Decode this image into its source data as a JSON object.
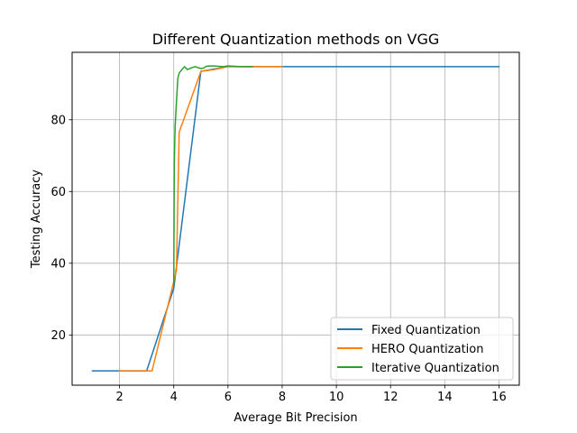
{
  "chart_data": {
    "type": "line",
    "title": "Different Quantization methods on VGG",
    "xlabel": "Average Bit Precision",
    "ylabel": "Testing Accuracy",
    "xlim": [
      0.25,
      16.75
    ],
    "ylim": [
      6.0,
      98.8
    ],
    "xticks": [
      2,
      4,
      6,
      8,
      10,
      12,
      14,
      16
    ],
    "yticks": [
      20,
      40,
      60,
      80
    ],
    "grid": true,
    "legend_position": "lower right",
    "series": [
      {
        "name": "Fixed Quantization",
        "color": "#1f77b4",
        "x": [
          1,
          2,
          3,
          4,
          5,
          6,
          7,
          8,
          9,
          10,
          11,
          12,
          13,
          14,
          15,
          16
        ],
        "y": [
          10.0,
          10.0,
          10.0,
          33.0,
          93.5,
          94.8,
          94.8,
          94.8,
          94.8,
          94.8,
          94.8,
          94.8,
          94.8,
          94.8,
          94.8,
          94.8
        ]
      },
      {
        "name": "HERO Quantization",
        "color": "#ff7f0e",
        "x": [
          2.0,
          3.2,
          4.1,
          4.2,
          5.0,
          5.5,
          6.0,
          7.0,
          8.0
        ],
        "y": [
          10.0,
          10.0,
          38.0,
          76.5,
          93.5,
          94.0,
          94.8,
          94.8,
          94.8
        ]
      },
      {
        "name": "Iterative Quantization",
        "color": "#2ca02c",
        "x": [
          4.0,
          4.02,
          4.05,
          4.1,
          4.15,
          4.2,
          4.3,
          4.4,
          4.5,
          4.6,
          4.7,
          4.8,
          4.9,
          5.0,
          5.1,
          5.2,
          5.3,
          5.5,
          5.8,
          6.0,
          6.5,
          6.9
        ],
        "y": [
          34.0,
          68.0,
          78.0,
          85.0,
          91.5,
          93.0,
          94.0,
          94.8,
          94.0,
          94.3,
          94.6,
          94.8,
          94.5,
          94.3,
          94.4,
          94.9,
          95.0,
          95.0,
          94.8,
          95.0,
          94.8,
          94.8
        ]
      }
    ]
  }
}
